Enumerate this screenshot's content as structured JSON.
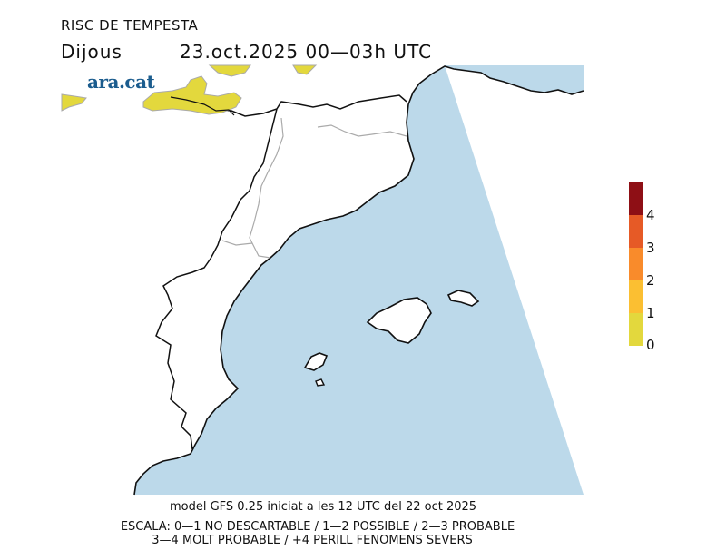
{
  "header": {
    "title": "RISC DE TEMPESTA",
    "day": "Dijous",
    "date_time": "23.oct.2025 00—03h UTC"
  },
  "logo": "ara.cat",
  "footer": {
    "model": "model GFS 0.25 iniciat a les 12 UTC del 22 oct 2025",
    "scale_line1": "ESCALA: 0—1 NO DESCARTABLE / 1—2 POSSIBLE / 2—3 PROBABLE",
    "scale_line2": "3—4 MOLT PROBABLE / +4 PERILL FENOMENS SEVERS"
  },
  "legend": {
    "labels": [
      "0",
      "1",
      "2",
      "3",
      "4"
    ],
    "colors": [
      "#e3d83d",
      "#fbbf32",
      "#f98b2b",
      "#e65a26",
      "#8e0f15"
    ]
  },
  "colors": {
    "sea": "#bcd9ea",
    "risk_0_1": "#e3d83d",
    "coast": "#111111",
    "border": "#aaaaaa"
  }
}
